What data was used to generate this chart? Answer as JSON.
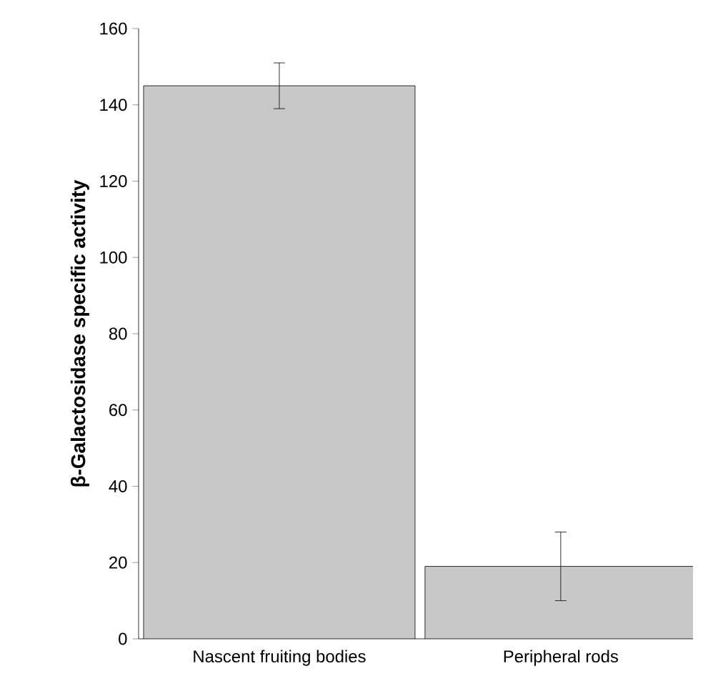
{
  "chart_data": {
    "type": "bar",
    "ylabel": "**β-Galactosidase specific activity**",
    "categories": [
      "Nascent fruiting bodies",
      "Peripheral rods"
    ],
    "values": [
      145,
      19
    ],
    "errors": [
      6,
      9
    ],
    "color": "#c8c8c8",
    "ylim": [
      0,
      160
    ],
    "yticks": [
      0,
      20,
      40,
      60,
      80,
      100,
      120,
      140,
      160
    ],
    "grid": false
  }
}
